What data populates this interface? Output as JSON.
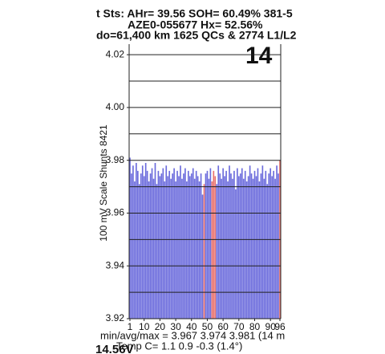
{
  "header": {
    "status": "t Sts: AHr= 39.56 SOH= 60.49% 381-5",
    "vin": "AZE0-055677   Hx= 52.56%",
    "odometer": "do=61,400 km  1625 QCs & 2774 L1/L2",
    "gids": "14"
  },
  "chart_data": {
    "type": "bar",
    "ylabel": "100 mV Scale   Shunts 8421",
    "x": [
      1,
      2,
      3,
      4,
      5,
      6,
      7,
      8,
      9,
      10,
      11,
      12,
      13,
      14,
      15,
      16,
      17,
      18,
      19,
      20,
      21,
      22,
      23,
      24,
      25,
      26,
      27,
      28,
      29,
      30,
      31,
      32,
      33,
      34,
      35,
      36,
      37,
      38,
      39,
      40,
      41,
      42,
      43,
      44,
      45,
      46,
      47,
      48,
      49,
      50,
      51,
      52,
      53,
      54,
      55,
      56,
      57,
      58,
      59,
      60,
      61,
      62,
      63,
      64,
      65,
      66,
      67,
      68,
      69,
      70,
      71,
      72,
      73,
      74,
      75,
      76,
      77,
      78,
      79,
      80,
      81,
      82,
      83,
      84,
      85,
      86,
      87,
      88,
      89,
      90,
      91,
      92,
      93,
      94,
      95,
      96
    ],
    "values": [
      3.981,
      3.975,
      3.978,
      3.972,
      3.979,
      3.976,
      3.971,
      3.975,
      3.978,
      3.974,
      3.979,
      3.976,
      3.972,
      3.975,
      3.977,
      3.973,
      3.979,
      3.971,
      3.976,
      3.974,
      3.975,
      3.977,
      3.972,
      3.978,
      3.974,
      3.976,
      3.973,
      3.975,
      3.977,
      3.972,
      3.976,
      3.974,
      3.978,
      3.973,
      3.975,
      3.977,
      3.972,
      3.976,
      3.974,
      3.975,
      3.977,
      3.973,
      3.976,
      3.974,
      3.972,
      3.975,
      3.967,
      3.971,
      3.975,
      3.976,
      3.973,
      3.977,
      3.972,
      3.976,
      3.974,
      3.971,
      3.978,
      3.975,
      3.973,
      3.977,
      3.974,
      3.976,
      3.972,
      3.978,
      3.975,
      3.973,
      3.976,
      3.969,
      3.977,
      3.974,
      3.975,
      3.977,
      3.973,
      3.976,
      3.972,
      3.974,
      3.978,
      3.975,
      3.973,
      3.976,
      3.974,
      3.977,
      3.972,
      3.975,
      3.978,
      3.973,
      3.976,
      3.971,
      3.975,
      3.977,
      3.974,
      3.976,
      3.973,
      3.978,
      3.975,
      3.98
    ],
    "color": "#6b6bdc",
    "highlight_color": "#e8706c",
    "highlighted": [
      48,
      53,
      54,
      55,
      96
    ],
    "xlim": [
      0.5,
      96.5
    ],
    "xticks": [
      1,
      10,
      20,
      30,
      40,
      50,
      60,
      70,
      80,
      90,
      96
    ],
    "ylim": [
      3.92,
      4.024
    ],
    "yticks": [
      3.92,
      3.94,
      3.96,
      3.98,
      {
        "value": 4,
        "label": "4.00"
      },
      4.02
    ],
    "grid_lines": [
      3.92,
      3.93,
      3.94,
      3.95,
      3.96,
      3.97,
      3.98,
      3.99,
      4,
      4.01,
      4.02
    ],
    "footer": {
      "stats": "min/avg/max = 3.967 3.974 3.981  (14 m",
      "temp": "Temp C= 1.1  0.9  -0.3  (1.4°)",
      "pack_voltage": "14.56V"
    }
  }
}
